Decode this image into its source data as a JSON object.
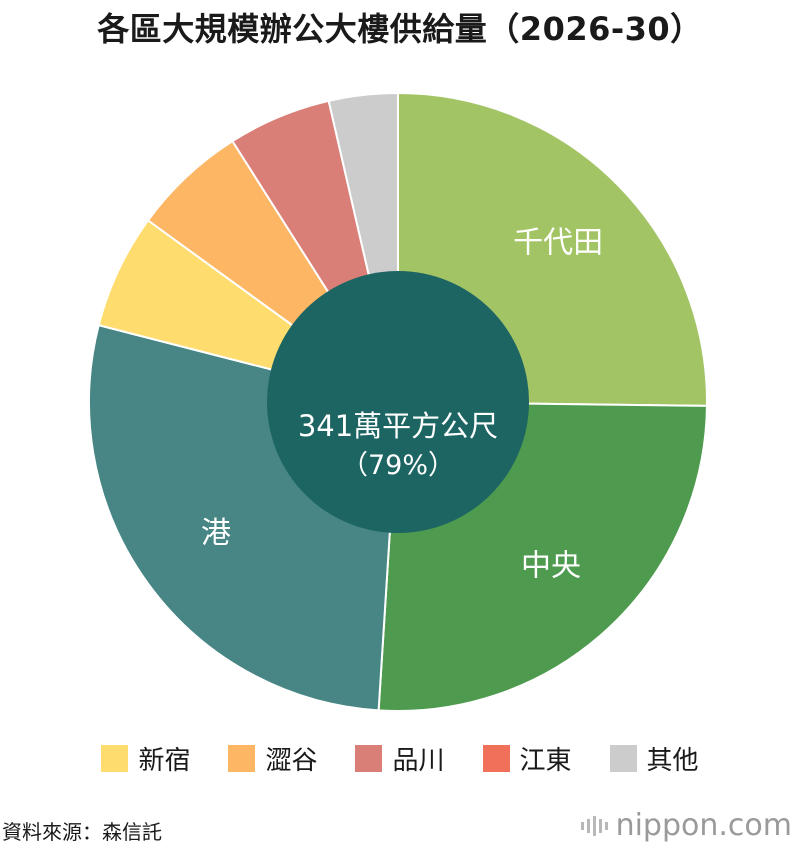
{
  "title": "各區大規模辦公大樓供給量（2026-30）",
  "chart_data": {
    "type": "pie",
    "slices": [
      {
        "name": "千代田",
        "value": 25.2,
        "color": "#a2c464",
        "label": "千代田"
      },
      {
        "name": "中央",
        "value": 25.8,
        "color": "#4e9a4e",
        "label": "中央"
      },
      {
        "name": "港",
        "value": 28.0,
        "color": "#478684",
        "label": "港"
      },
      {
        "name": "新宿",
        "value": 6.0,
        "color": "#fedc6e",
        "label": ""
      },
      {
        "name": "澀谷",
        "value": 6.0,
        "color": "#fdb663",
        "label": ""
      },
      {
        "name": "品川",
        "value": 5.4,
        "color": "#da7f78",
        "label": ""
      },
      {
        "name": "江東",
        "value": 0,
        "color": "#f0705a",
        "label": ""
      },
      {
        "name": "其他",
        "value": 3.6,
        "color": "#cccccc",
        "label": ""
      }
    ],
    "center_label": [
      "341萬平方公尺",
      "（79%）"
    ],
    "center_color": "#1d6563",
    "legend_position": "bottom"
  },
  "legend": [
    {
      "label": "新宿",
      "color": "#fedc6e"
    },
    {
      "label": "澀谷",
      "color": "#fdb663"
    },
    {
      "label": "品川",
      "color": "#da7f78"
    },
    {
      "label": "江東",
      "color": "#f0705a"
    },
    {
      "label": "其他",
      "color": "#cccccc"
    }
  ],
  "source": "資料來源：森信託",
  "brand": "nippon.com"
}
